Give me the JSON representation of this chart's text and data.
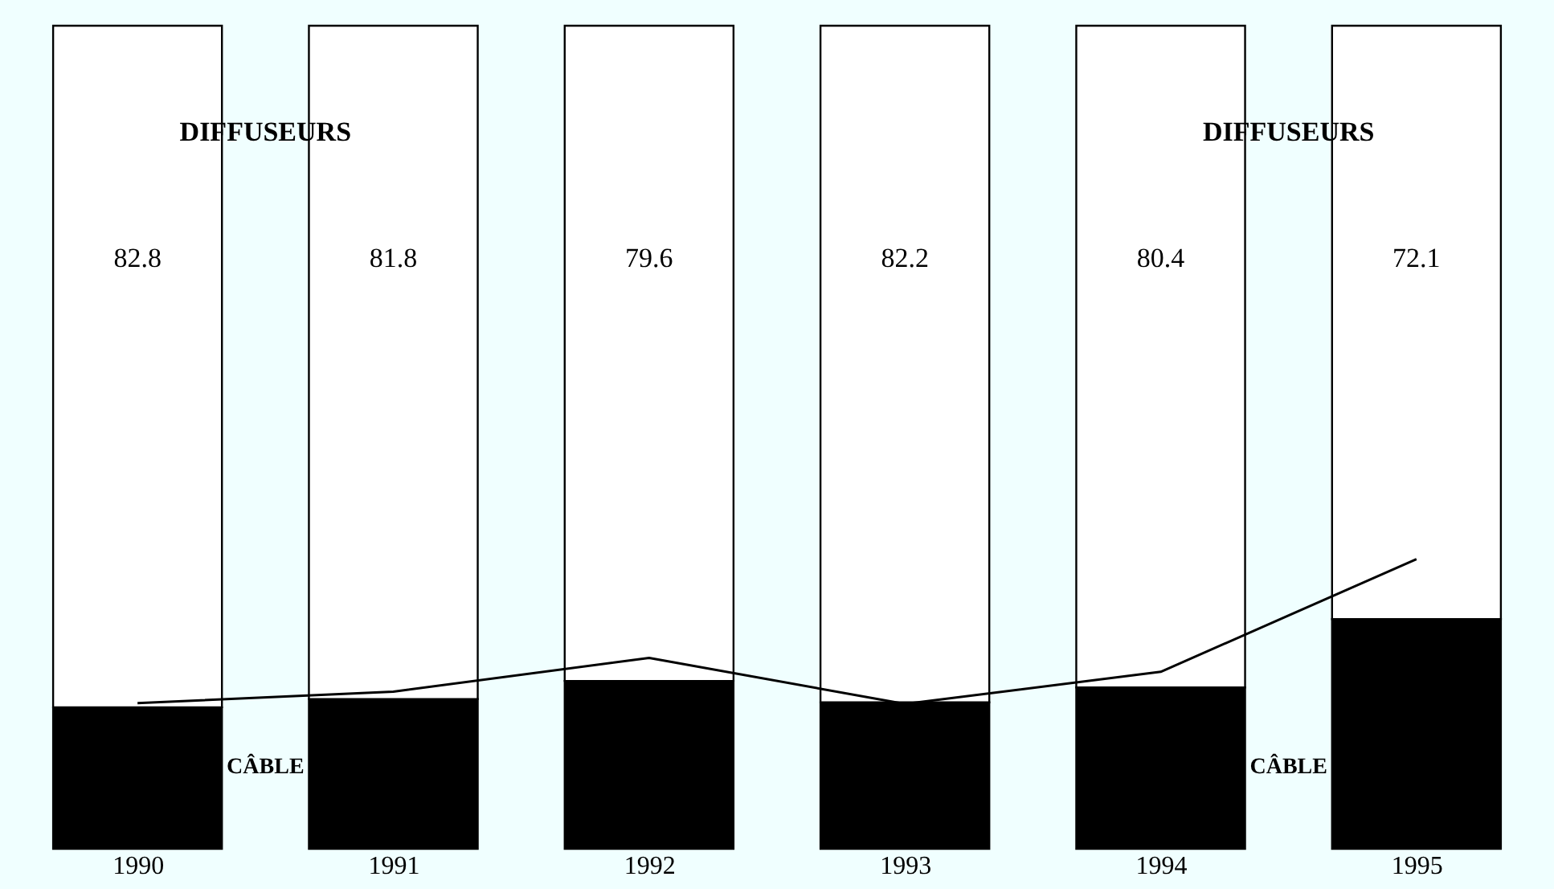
{
  "chart_data": {
    "type": "bar",
    "stacked": true,
    "categories": [
      "1990",
      "1991",
      "1992",
      "1993",
      "1994",
      "1995"
    ],
    "ylim": [
      0,
      100
    ],
    "tick_labels": "x",
    "series": [
      {
        "name": "CÂBLE",
        "color": "#000000",
        "values": [
          17.2,
          18.2,
          20.4,
          17.8,
          19.6,
          27.9
        ]
      },
      {
        "name": "DIFFUSEURS",
        "color": "#ffffff",
        "values": [
          82.8,
          81.8,
          79.6,
          82.2,
          80.4,
          72.1
        ],
        "value_labels": [
          "82.8",
          "81.8",
          "79.6",
          "82.2",
          "80.4",
          "72.1"
        ]
      },
      {
        "type": "line",
        "color": "#000000",
        "values": [
          17.7,
          19.1,
          23.2,
          17.6,
          21.5,
          35.2
        ]
      }
    ]
  }
}
